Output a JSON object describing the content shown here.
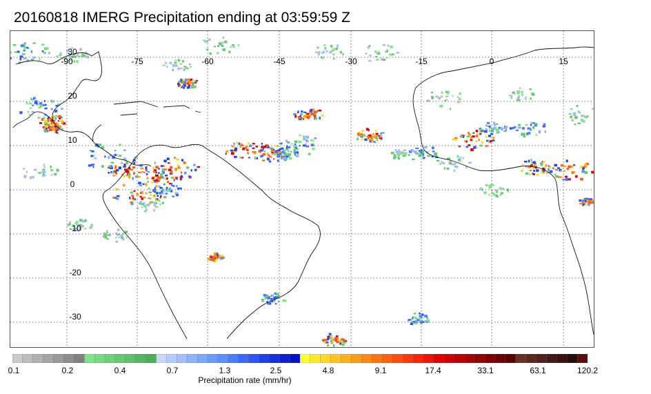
{
  "map": {
    "title": "20160818 IMERG Precipitation ending at 03:59:59 Z",
    "longitude_labels": [
      "-90",
      "-75",
      "-60",
      "-45",
      "-30",
      "-15",
      "0",
      "15"
    ],
    "latitude_labels": [
      "30",
      "20",
      "10",
      "0",
      "-10",
      "-20",
      "-30"
    ],
    "region": "Tropical Atlantic: Americas, Caribbean, West Africa",
    "grid": true
  },
  "colorbar": {
    "title": "Precipitation rate (mm/hr)",
    "tick_labels": [
      "0.1",
      "0.2",
      "0.4",
      "0.7",
      "1.3",
      "2.5",
      "4.8",
      "9.1",
      "17.4",
      "33.1",
      "63.1",
      "120.2"
    ],
    "colors": [
      "#c9c9c9",
      "#bdbdbd",
      "#b1b1b1",
      "#a5a5a5",
      "#999999",
      "#8d8d8d",
      "#818181",
      "#7fe38a",
      "#76db82",
      "#6ed27a",
      "#66c972",
      "#5ec06a",
      "#56b762",
      "#4fae5b",
      "#c8d8ff",
      "#b5ccff",
      "#a2c0ff",
      "#8fb4ff",
      "#7ca8ff",
      "#6a9cff",
      "#5890ff",
      "#4a7cff",
      "#3b68ff",
      "#2d54f7",
      "#1f40ef",
      "#1530e3",
      "#0c20d7",
      "#0410cb",
      "#ffff33",
      "#ffeb2e",
      "#ffd829",
      "#ffc424",
      "#ffb01f",
      "#ff9d1a",
      "#ff8915",
      "#ff7512",
      "#ff610f",
      "#ff4d0c",
      "#ff3909",
      "#f72606",
      "#ef1403",
      "#e20000",
      "#cf0000",
      "#bc0000",
      "#a90000",
      "#960000",
      "#830000",
      "#700000",
      "#5d0000",
      "#6b2f25",
      "#5e2820",
      "#51211b",
      "#441a16",
      "#371311",
      "#2a0c0c",
      "#5b1010"
    ]
  }
}
